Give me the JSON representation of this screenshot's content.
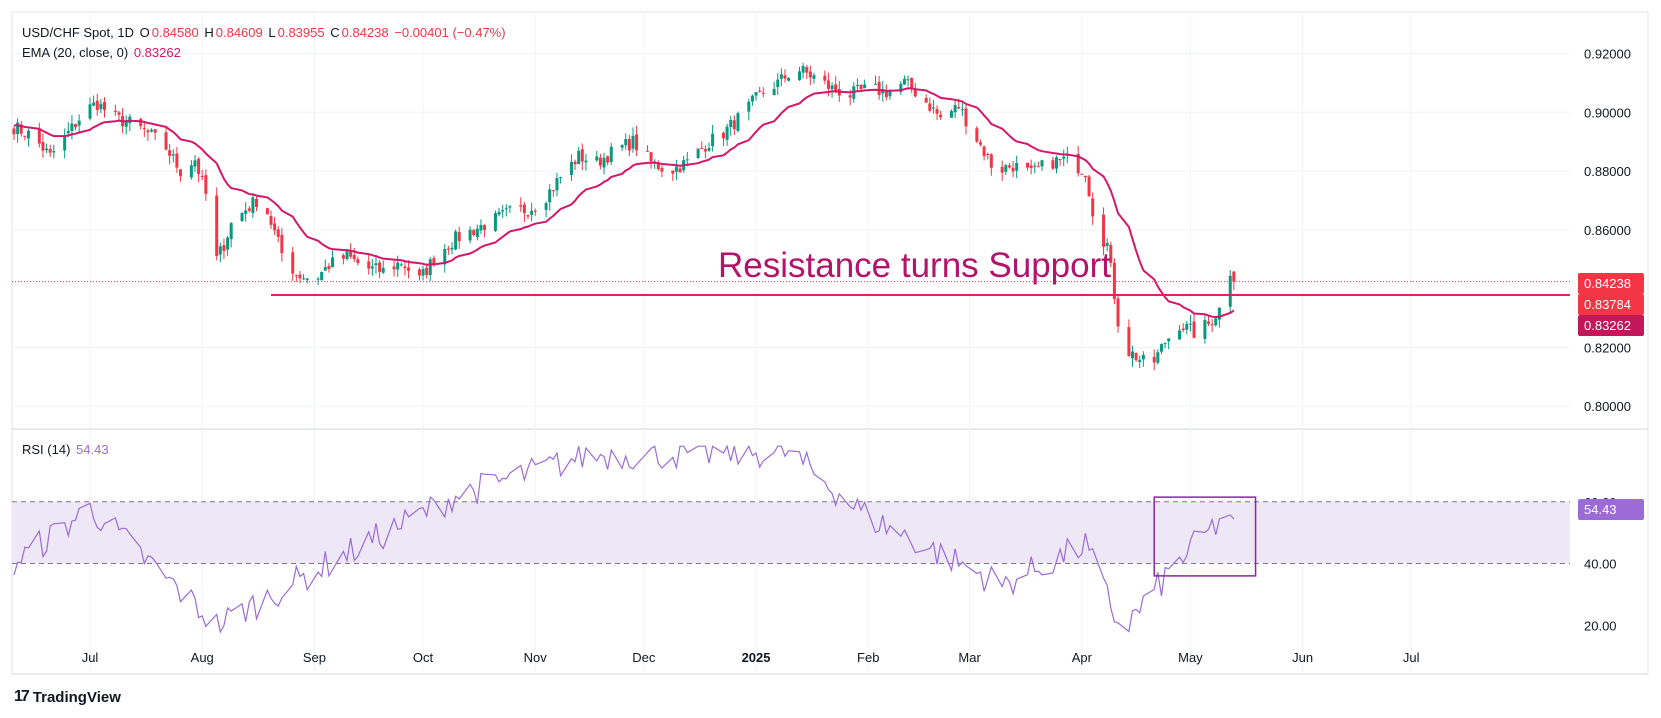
{
  "header": {
    "symbol": "USD/CHF Spot, 1D",
    "open_label": "O",
    "open": "0.84580",
    "high_label": "H",
    "high": "0.84609",
    "low_label": "L",
    "low": "0.83955",
    "close_label": "C",
    "close": "0.84238",
    "change": "−0.00401 (−0.47%)"
  },
  "ema_legend": {
    "label": "EMA (20, close, 0)",
    "value": "0.83262"
  },
  "rsi_legend": {
    "label": "RSI (14)",
    "value": "54.43"
  },
  "annotation": "Resistance turns Support",
  "badges": {
    "price": {
      "value": "0.84238",
      "color": "#f23645"
    },
    "support": {
      "value": "0.83784",
      "color": "#f23645"
    },
    "ema": {
      "value": "0.83262",
      "color": "#c2185b"
    },
    "rsi": {
      "value": "54.43",
      "color": "#9c6bd8"
    }
  },
  "brand": "TradingView",
  "colors": {
    "up": "#089981",
    "down": "#f23645",
    "ema": "#d5166a",
    "rsi": "#9c6bd8",
    "support_line": "#e0245e",
    "rsi_band": "#ede7f6"
  },
  "chart_data": [
    {
      "type": "candlestick",
      "title": "USD/CHF Spot, 1D",
      "x_ticks": [
        "Jul",
        "Aug",
        "Sep",
        "Oct",
        "Nov",
        "Dec",
        "2025",
        "Feb",
        "Mar",
        "Apr",
        "May",
        "Jun",
        "Jul"
      ],
      "y_ticks": [
        "0.92000",
        "0.90000",
        "0.88000",
        "0.86000",
        "0.82000",
        "0.80000"
      ],
      "ylim": [
        0.796,
        0.928
      ],
      "support_level": 0.83784,
      "last_price": 0.84238,
      "series": [
        {
          "name": "EMA (20, close, 0)",
          "last": 0.83262
        }
      ],
      "close_path": [
        [
          "2024-06-10",
          0.895
        ],
        [
          "2024-06-15",
          0.892
        ],
        [
          "2024-06-20",
          0.885
        ],
        [
          "2024-06-25",
          0.893
        ],
        [
          "2024-06-30",
          0.901
        ],
        [
          "2024-07-03",
          0.903
        ],
        [
          "2024-07-08",
          0.898
        ],
        [
          "2024-07-13",
          0.896
        ],
        [
          "2024-07-18",
          0.892
        ],
        [
          "2024-07-22",
          0.888
        ],
        [
          "2024-07-26",
          0.88
        ],
        [
          "2024-07-30",
          0.884
        ],
        [
          "2024-08-02",
          0.872
        ],
        [
          "2024-08-05",
          0.85
        ],
        [
          "2024-08-07",
          0.855
        ],
        [
          "2024-08-09",
          0.862
        ],
        [
          "2024-08-13",
          0.867
        ],
        [
          "2024-08-16",
          0.87
        ],
        [
          "2024-08-19",
          0.866
        ],
        [
          "2024-08-23",
          0.852
        ],
        [
          "2024-08-27",
          0.845
        ],
        [
          "2024-09-01",
          0.843
        ],
        [
          "2024-09-05",
          0.848
        ],
        [
          "2024-09-10",
          0.851
        ],
        [
          "2024-09-15",
          0.847
        ],
        [
          "2024-09-20",
          0.846
        ],
        [
          "2024-09-25",
          0.849
        ],
        [
          "2024-09-30",
          0.843
        ],
        [
          "2024-10-05",
          0.852
        ],
        [
          "2024-10-10",
          0.857
        ],
        [
          "2024-10-15",
          0.86
        ],
        [
          "2024-10-20",
          0.863
        ],
        [
          "2024-10-25",
          0.866
        ],
        [
          "2024-10-30",
          0.867
        ],
        [
          "2024-11-03",
          0.87
        ],
        [
          "2024-11-08",
          0.878
        ],
        [
          "2024-11-13",
          0.885
        ],
        [
          "2024-11-18",
          0.883
        ],
        [
          "2024-11-23",
          0.887
        ],
        [
          "2024-11-28",
          0.89
        ],
        [
          "2024-12-03",
          0.883
        ],
        [
          "2024-12-08",
          0.88
        ],
        [
          "2024-12-13",
          0.883
        ],
        [
          "2024-12-18",
          0.889
        ],
        [
          "2024-12-23",
          0.893
        ],
        [
          "2024-12-28",
          0.899
        ],
        [
          "2025-01-02",
          0.906
        ],
        [
          "2025-01-07",
          0.91
        ],
        [
          "2025-01-12",
          0.915
        ],
        [
          "2025-01-17",
          0.912
        ],
        [
          "2025-01-22",
          0.908
        ],
        [
          "2025-01-27",
          0.906
        ],
        [
          "2025-02-01",
          0.908
        ],
        [
          "2025-02-06",
          0.907
        ],
        [
          "2025-02-11",
          0.91
        ],
        [
          "2025-02-16",
          0.905
        ],
        [
          "2025-02-21",
          0.898
        ],
        [
          "2025-02-26",
          0.902
        ],
        [
          "2025-03-03",
          0.891
        ],
        [
          "2025-03-08",
          0.88
        ],
        [
          "2025-03-13",
          0.882
        ],
        [
          "2025-03-18",
          0.879
        ],
        [
          "2025-03-23",
          0.883
        ],
        [
          "2025-03-28",
          0.884
        ],
        [
          "2025-04-02",
          0.88
        ],
        [
          "2025-04-05",
          0.86
        ],
        [
          "2025-04-08",
          0.855
        ],
        [
          "2025-04-10",
          0.838
        ],
        [
          "2025-04-12",
          0.82
        ],
        [
          "2025-04-16",
          0.817
        ],
        [
          "2025-04-20",
          0.813
        ],
        [
          "2025-04-24",
          0.822
        ],
        [
          "2025-04-28",
          0.828
        ],
        [
          "2025-05-02",
          0.825
        ],
        [
          "2025-05-06",
          0.828
        ],
        [
          "2025-05-09",
          0.833
        ],
        [
          "2025-05-12",
          0.846
        ],
        [
          "2025-05-13",
          0.842
        ]
      ]
    },
    {
      "type": "line",
      "title": "RSI (14)",
      "y_ticks": [
        "60.00",
        "40.00",
        "20.00"
      ],
      "ylim": [
        12,
        80
      ],
      "band": [
        40,
        60
      ],
      "last": 54.43,
      "values_key_points": [
        [
          "2024-06-10",
          40
        ],
        [
          "2024-07-01",
          58
        ],
        [
          "2024-08-05",
          20
        ],
        [
          "2024-09-05",
          40
        ],
        [
          "2024-10-10",
          62
        ],
        [
          "2024-11-15",
          75
        ],
        [
          "2025-01-10",
          76
        ],
        [
          "2025-02-01",
          55
        ],
        [
          "2025-03-10",
          33
        ],
        [
          "2025-04-02",
          46
        ],
        [
          "2025-04-12",
          18
        ],
        [
          "2025-04-28",
          41
        ],
        [
          "2025-05-12",
          57
        ],
        [
          "2025-05-13",
          54.43
        ]
      ]
    }
  ]
}
